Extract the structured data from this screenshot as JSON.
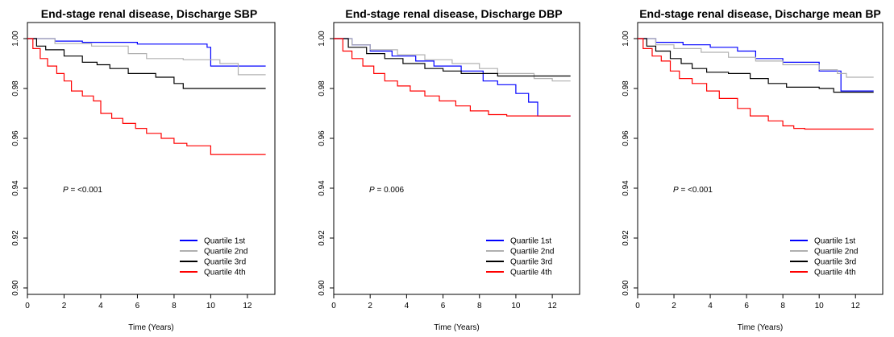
{
  "chart_data": [
    {
      "type": "line",
      "title": "End-stage renal disease, Discharge SBP",
      "xlabel": "Time (Years)",
      "ylabel": "",
      "xlim": [
        0,
        13.5
      ],
      "ylim": [
        0.9,
        1.0
      ],
      "xticks": [
        "0",
        "2",
        "4",
        "6",
        "8",
        "10",
        "12"
      ],
      "yticks": [
        "0.90",
        "0.92",
        "0.94",
        "0.96",
        "0.98",
        "1.00"
      ],
      "annotation": {
        "p_label": "P",
        "p_value": " = <0.001"
      },
      "legend_position": "bottom-right",
      "series": [
        {
          "name": "Quartile 1st",
          "color": "#0000ff",
          "points": [
            [
              0,
              1.0
            ],
            [
              1.5,
              0.999
            ],
            [
              3,
              0.9985
            ],
            [
              6,
              0.9978
            ],
            [
              9.8,
              0.9965
            ],
            [
              10,
              0.989
            ],
            [
              13,
              0.989
            ]
          ]
        },
        {
          "name": "Quartile 2nd",
          "color": "#b0b0b0",
          "points": [
            [
              0,
              1.0
            ],
            [
              1.5,
              0.998
            ],
            [
              3.5,
              0.997
            ],
            [
              5.5,
              0.994
            ],
            [
              6.5,
              0.992
            ],
            [
              8.5,
              0.9915
            ],
            [
              10.5,
              0.99
            ],
            [
              11.5,
              0.9855
            ],
            [
              13,
              0.9855
            ]
          ]
        },
        {
          "name": "Quartile 3rd",
          "color": "#000000",
          "points": [
            [
              0,
              1.0
            ],
            [
              0.5,
              0.997
            ],
            [
              1,
              0.9955
            ],
            [
              2,
              0.993
            ],
            [
              3,
              0.9905
            ],
            [
              3.8,
              0.9895
            ],
            [
              4.5,
              0.988
            ],
            [
              5.5,
              0.986
            ],
            [
              7,
              0.9845
            ],
            [
              8,
              0.982
            ],
            [
              8.5,
              0.98
            ],
            [
              13,
              0.98
            ]
          ]
        },
        {
          "name": "Quartile 4th",
          "color": "#ff0000",
          "points": [
            [
              0,
              1.0
            ],
            [
              0.3,
              0.996
            ],
            [
              0.7,
              0.992
            ],
            [
              1.1,
              0.989
            ],
            [
              1.6,
              0.986
            ],
            [
              2,
              0.983
            ],
            [
              2.4,
              0.979
            ],
            [
              3,
              0.977
            ],
            [
              3.6,
              0.975
            ],
            [
              4,
              0.97
            ],
            [
              4.6,
              0.968
            ],
            [
              5.2,
              0.966
            ],
            [
              5.9,
              0.964
            ],
            [
              6.5,
              0.962
            ],
            [
              7.3,
              0.96
            ],
            [
              8,
              0.958
            ],
            [
              8.7,
              0.957
            ],
            [
              10,
              0.9535
            ],
            [
              13,
              0.9535
            ]
          ]
        }
      ]
    },
    {
      "type": "line",
      "title": "End-stage renal disease, Discharge DBP",
      "xlabel": "Time (Years)",
      "ylabel": "",
      "xlim": [
        0,
        13.5
      ],
      "ylim": [
        0.9,
        1.0
      ],
      "xticks": [
        "0",
        "2",
        "4",
        "6",
        "8",
        "10",
        "12"
      ],
      "yticks": [
        "0.90",
        "0.92",
        "0.94",
        "0.96",
        "0.98",
        "1.00"
      ],
      "annotation": {
        "p_label": "P",
        "p_value": " = 0.006"
      },
      "legend_position": "bottom-right",
      "series": [
        {
          "name": "Quartile 1st",
          "color": "#0000ff",
          "points": [
            [
              0,
              1.0
            ],
            [
              1,
              0.9975
            ],
            [
              2,
              0.995
            ],
            [
              3.2,
              0.993
            ],
            [
              4.5,
              0.991
            ],
            [
              5.5,
              0.989
            ],
            [
              7,
              0.987
            ],
            [
              8.2,
              0.983
            ],
            [
              9,
              0.9815
            ],
            [
              10,
              0.978
            ],
            [
              10.7,
              0.9745
            ],
            [
              11.2,
              0.969
            ],
            [
              13,
              0.969
            ]
          ]
        },
        {
          "name": "Quartile 2nd",
          "color": "#b0b0b0",
          "points": [
            [
              0,
              1.0
            ],
            [
              1,
              0.9975
            ],
            [
              2,
              0.9955
            ],
            [
              3.5,
              0.9935
            ],
            [
              5,
              0.9915
            ],
            [
              6.5,
              0.99
            ],
            [
              8,
              0.988
            ],
            [
              9,
              0.986
            ],
            [
              11,
              0.984
            ],
            [
              12,
              0.983
            ],
            [
              13,
              0.983
            ]
          ]
        },
        {
          "name": "Quartile 3rd",
          "color": "#000000",
          "points": [
            [
              0,
              1.0
            ],
            [
              0.8,
              0.9965
            ],
            [
              1.8,
              0.994
            ],
            [
              2.8,
              0.992
            ],
            [
              3.8,
              0.99
            ],
            [
              5,
              0.988
            ],
            [
              6,
              0.987
            ],
            [
              7,
              0.986
            ],
            [
              9,
              0.985
            ],
            [
              13,
              0.985
            ]
          ]
        },
        {
          "name": "Quartile 4th",
          "color": "#ff0000",
          "points": [
            [
              0,
              1.0
            ],
            [
              0.5,
              0.995
            ],
            [
              1,
              0.992
            ],
            [
              1.6,
              0.989
            ],
            [
              2.2,
              0.986
            ],
            [
              2.8,
              0.983
            ],
            [
              3.5,
              0.981
            ],
            [
              4.2,
              0.979
            ],
            [
              5,
              0.977
            ],
            [
              5.8,
              0.975
            ],
            [
              6.7,
              0.973
            ],
            [
              7.5,
              0.971
            ],
            [
              8.5,
              0.9695
            ],
            [
              9.5,
              0.969
            ],
            [
              13,
              0.969
            ]
          ]
        }
      ]
    },
    {
      "type": "line",
      "title": "End-stage renal disease, Discharge mean BP",
      "xlabel": "Time (Years)",
      "ylabel": "",
      "xlim": [
        0,
        13.5
      ],
      "ylim": [
        0.9,
        1.0
      ],
      "xticks": [
        "0",
        "2",
        "4",
        "6",
        "8",
        "10",
        "12"
      ],
      "yticks": [
        "0.90",
        "0.92",
        "0.94",
        "0.96",
        "0.98",
        "1.00"
      ],
      "annotation": {
        "p_label": "P",
        "p_value": " = <0.001"
      },
      "legend_position": "bottom-right",
      "series": [
        {
          "name": "Quartile 1st",
          "color": "#0000ff",
          "points": [
            [
              0,
              1.0
            ],
            [
              1,
              0.9985
            ],
            [
              2.5,
              0.9975
            ],
            [
              4,
              0.9965
            ],
            [
              5.5,
              0.995
            ],
            [
              6.5,
              0.992
            ],
            [
              8,
              0.9905
            ],
            [
              10,
              0.987
            ],
            [
              11.2,
              0.979
            ],
            [
              13,
              0.979
            ]
          ]
        },
        {
          "name": "Quartile 2nd",
          "color": "#b0b0b0",
          "points": [
            [
              0,
              1.0
            ],
            [
              1,
              0.9975
            ],
            [
              2,
              0.996
            ],
            [
              3.5,
              0.9945
            ],
            [
              5,
              0.9925
            ],
            [
              6.5,
              0.991
            ],
            [
              8,
              0.9895
            ],
            [
              10,
              0.9875
            ],
            [
              11,
              0.986
            ],
            [
              11.5,
              0.9845
            ],
            [
              13,
              0.9845
            ]
          ]
        },
        {
          "name": "Quartile 3rd",
          "color": "#000000",
          "points": [
            [
              0,
              1.0
            ],
            [
              0.5,
              0.997
            ],
            [
              1,
              0.995
            ],
            [
              1.8,
              0.992
            ],
            [
              2.4,
              0.99
            ],
            [
              3,
              0.988
            ],
            [
              3.8,
              0.9865
            ],
            [
              5,
              0.986
            ],
            [
              6.2,
              0.984
            ],
            [
              7.2,
              0.982
            ],
            [
              8.2,
              0.9805
            ],
            [
              10,
              0.98
            ],
            [
              10.8,
              0.9785
            ],
            [
              13,
              0.9785
            ]
          ]
        },
        {
          "name": "Quartile 4th",
          "color": "#ff0000",
          "points": [
            [
              0,
              1.0
            ],
            [
              0.3,
              0.996
            ],
            [
              0.8,
              0.993
            ],
            [
              1.3,
              0.991
            ],
            [
              1.8,
              0.987
            ],
            [
              2.3,
              0.984
            ],
            [
              3,
              0.982
            ],
            [
              3.8,
              0.979
            ],
            [
              4.5,
              0.976
            ],
            [
              5.5,
              0.972
            ],
            [
              6.2,
              0.969
            ],
            [
              7.2,
              0.967
            ],
            [
              8,
              0.965
            ],
            [
              8.6,
              0.964
            ],
            [
              9.2,
              0.9637
            ],
            [
              13,
              0.9637
            ]
          ]
        }
      ]
    }
  ]
}
